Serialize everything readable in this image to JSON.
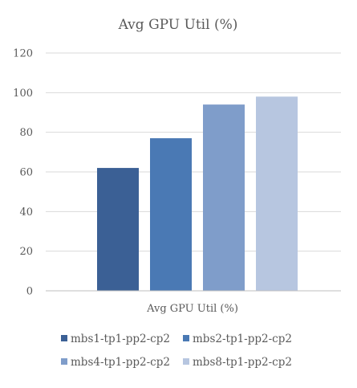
{
  "chart_data": {
    "type": "bar",
    "title": "Avg GPU Util (%)",
    "categories": [
      "Avg GPU Util (%)"
    ],
    "series": [
      {
        "name": "mbs1-tp1-pp2-cp2",
        "values": [
          62
        ],
        "color": "#3b6095"
      },
      {
        "name": "mbs2-tp1-pp2-cp2",
        "values": [
          77
        ],
        "color": "#4a79b4"
      },
      {
        "name": "mbs4-tp1-pp2-cp2",
        "values": [
          94
        ],
        "color": "#7f9dca"
      },
      {
        "name": "mbs8-tp1-pp2-cp2",
        "values": [
          98
        ],
        "color": "#b7c6e0"
      }
    ],
    "xlabel": "",
    "ylabel": "",
    "ylim": [
      0,
      120
    ],
    "yticks": [
      0,
      20,
      40,
      60,
      80,
      100,
      120
    ],
    "grid": true,
    "legend_position": "bottom"
  }
}
